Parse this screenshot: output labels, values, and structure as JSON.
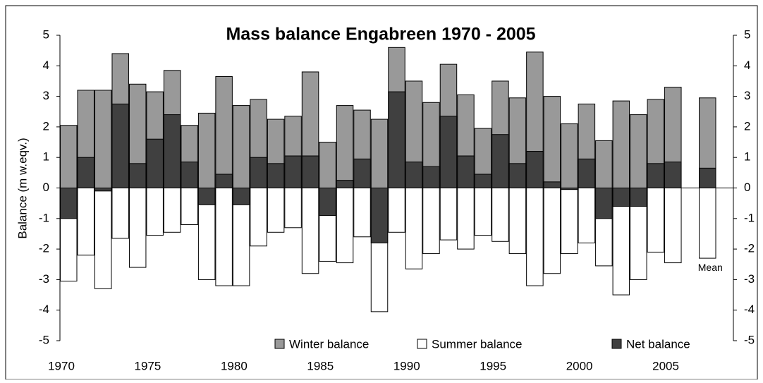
{
  "chart_data": {
    "type": "bar",
    "title": "Mass balance Engabreen 1970 - 2005",
    "y_label": "Balance (m w.eqv.)",
    "categories": [
      "1970",
      null,
      null,
      null,
      null,
      "1975",
      null,
      null,
      null,
      null,
      "1980",
      null,
      null,
      null,
      null,
      "1985",
      null,
      null,
      null,
      null,
      "1990",
      null,
      null,
      null,
      null,
      "1995",
      null,
      null,
      null,
      null,
      "2000",
      null,
      null,
      null,
      null,
      "2005",
      null,
      "Mean",
      null
    ],
    "series": [
      {
        "name": "Winter balance",
        "color": "#999999",
        "values": [
          2.05,
          3.2,
          3.2,
          4.4,
          3.4,
          3.15,
          3.85,
          2.05,
          2.45,
          3.65,
          2.7,
          2.9,
          2.25,
          2.35,
          3.8,
          1.5,
          2.7,
          2.55,
          2.25,
          4.6,
          3.5,
          2.8,
          4.05,
          3.05,
          1.95,
          3.5,
          2.95,
          4.45,
          3.0,
          2.1,
          2.75,
          1.55,
          2.85,
          2.4,
          2.9,
          3.3,
          null,
          2.95,
          null
        ]
      },
      {
        "name": "Summer balance",
        "color": "#ffffff",
        "values": [
          -3.05,
          -2.2,
          -3.3,
          -1.65,
          -2.6,
          -1.55,
          -1.45,
          -1.2,
          -3.0,
          -3.2,
          -3.2,
          -1.9,
          -1.45,
          -1.3,
          -2.8,
          -2.4,
          -2.45,
          -1.6,
          -4.05,
          -1.45,
          -2.65,
          -2.15,
          -1.7,
          -2.0,
          -1.55,
          -1.75,
          -2.15,
          -3.2,
          -2.8,
          -2.15,
          -1.8,
          -2.55,
          -3.5,
          -3.0,
          -2.1,
          -2.45,
          null,
          -2.3,
          null
        ]
      },
      {
        "name": "Net balance",
        "color": "#404040",
        "values": [
          -1.0,
          1.0,
          -0.1,
          2.75,
          0.8,
          1.6,
          2.4,
          0.85,
          -0.55,
          0.45,
          -0.55,
          1.0,
          0.8,
          1.05,
          1.05,
          -0.9,
          0.25,
          0.95,
          -1.8,
          3.15,
          0.85,
          0.7,
          2.35,
          1.05,
          0.45,
          1.75,
          0.8,
          1.2,
          0.2,
          -0.05,
          0.95,
          -1.0,
          -0.6,
          -0.6,
          0.8,
          0.85,
          null,
          0.65,
          null
        ]
      }
    ],
    "ylim": [
      -5,
      5
    ],
    "yticks": [
      -5,
      -4,
      -3,
      -2,
      -1,
      0,
      1,
      2,
      3,
      4,
      5
    ],
    "y2lim": [
      -5,
      5
    ],
    "y2ticks": [
      -5,
      -4,
      -3,
      -2,
      -1,
      0,
      1,
      2,
      3,
      4,
      5
    ],
    "legend": "bottom-right"
  }
}
